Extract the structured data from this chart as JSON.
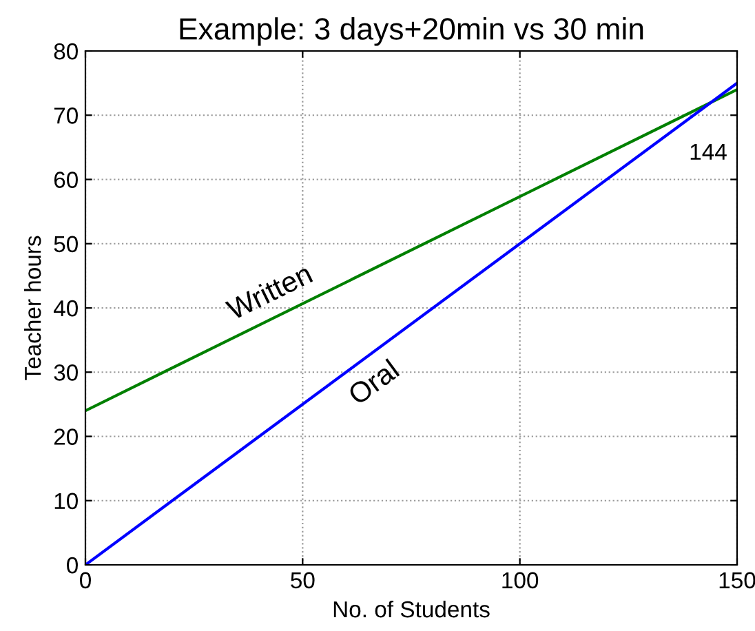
{
  "chart_data": {
    "type": "line",
    "title": "Example: 3 days+20min vs 30 min",
    "xlabel": "No. of Students",
    "ylabel": "Teacher hours",
    "x": [
      0,
      150
    ],
    "series": [
      {
        "name": "Written",
        "color": "#008000",
        "values": [
          24,
          74
        ]
      },
      {
        "name": "Oral",
        "color": "#0000ff",
        "values": [
          0,
          75
        ]
      }
    ],
    "annotations": [
      "144"
    ],
    "xlim": [
      0,
      150
    ],
    "ylim": [
      0,
      80
    ],
    "xticks": [
      0,
      50,
      100,
      150
    ],
    "yticks": [
      0,
      10,
      20,
      30,
      40,
      50,
      60,
      70,
      80
    ],
    "grid": true,
    "line_style": "solid",
    "marker": "none"
  }
}
